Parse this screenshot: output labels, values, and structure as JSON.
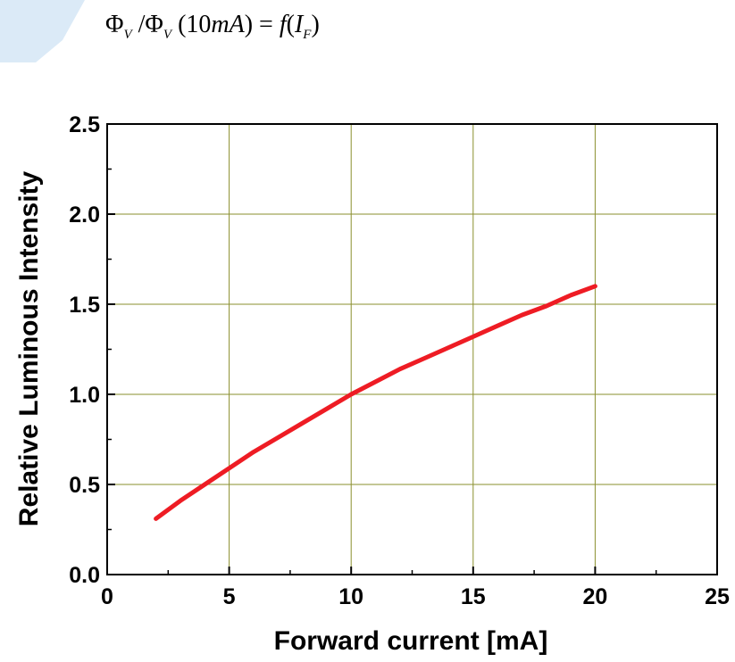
{
  "formula": {
    "phi": "Φ",
    "sub_v": "V",
    "slash": " /",
    "arg_open": " (10",
    "arg_unit": "mA",
    "arg_close": ")",
    "equals": " = ",
    "func": "f",
    "func_open": "(",
    "var": "I",
    "sub_f": "F",
    "func_close": ")"
  },
  "colors": {
    "curve": "#ee1c24",
    "grid": "#8a8f2e",
    "axis": "#000000",
    "watermark": "#dbeaf7"
  },
  "chart_data": {
    "type": "line",
    "xlabel": "Forward current [mA]",
    "ylabel": "Relative Luminous Intensity",
    "xlim": [
      0,
      25
    ],
    "ylim": [
      0,
      2.5
    ],
    "x_ticks": [
      0,
      5,
      10,
      15,
      20,
      25
    ],
    "y_ticks": [
      0.0,
      0.5,
      1.0,
      1.5,
      2.0,
      2.5
    ],
    "x_tick_labels": [
      "0",
      "5",
      "10",
      "15",
      "20",
      "25"
    ],
    "y_tick_labels": [
      "0.0",
      "0.5",
      "1.0",
      "1.5",
      "2.0",
      "2.5"
    ],
    "grid": true,
    "series": [
      {
        "x": [
          2,
          3,
          4,
          5,
          6,
          7,
          8,
          9,
          10,
          11,
          12,
          13,
          14,
          15,
          16,
          17,
          18,
          19,
          20
        ],
        "y": [
          0.31,
          0.41,
          0.5,
          0.59,
          0.68,
          0.76,
          0.84,
          0.92,
          1.0,
          1.07,
          1.14,
          1.2,
          1.26,
          1.32,
          1.38,
          1.44,
          1.49,
          1.55,
          1.6
        ]
      }
    ]
  }
}
